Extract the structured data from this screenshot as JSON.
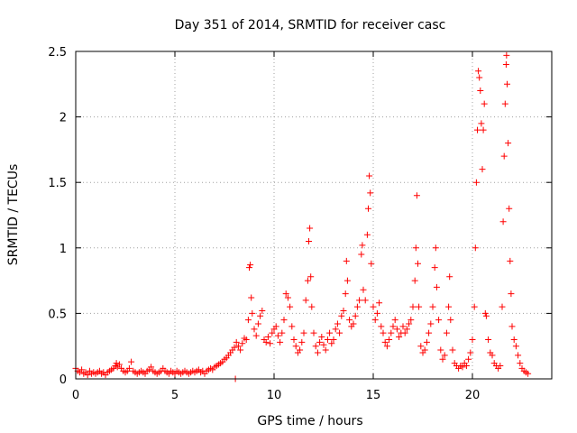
{
  "chart_data": {
    "type": "scatter",
    "title": "Day 351 of 2014, SRMTID for receiver casc",
    "xlabel": "GPS time / hours",
    "ylabel": "SRMTID / TECUs",
    "xlim": [
      0,
      24
    ],
    "ylim": [
      0,
      2.5
    ],
    "x_ticks": [
      0,
      5,
      10,
      15,
      20
    ],
    "x_tick_labels": [
      "0",
      "5",
      "10",
      "15",
      "20"
    ],
    "y_ticks": [
      0,
      0.5,
      1,
      1.5,
      2,
      2.5
    ],
    "y_tick_labels": [
      "0",
      "0.5",
      "1",
      "1.5",
      "2",
      "2.5"
    ],
    "grid": true,
    "marker": "+",
    "marker_color": "#ff0000",
    "series": [
      {
        "name": "SRMTID",
        "points": [
          [
            0.0,
            0.08
          ],
          [
            0.1,
            0.06
          ],
          [
            0.2,
            0.05
          ],
          [
            0.3,
            0.07
          ],
          [
            0.4,
            0.04
          ],
          [
            0.5,
            0.05
          ],
          [
            0.6,
            0.03
          ],
          [
            0.7,
            0.06
          ],
          [
            0.8,
            0.04
          ],
          [
            0.9,
            0.05
          ],
          [
            1.0,
            0.04
          ],
          [
            1.1,
            0.05
          ],
          [
            1.2,
            0.06
          ],
          [
            1.3,
            0.04
          ],
          [
            1.4,
            0.05
          ],
          [
            1.5,
            0.03
          ],
          [
            1.6,
            0.05
          ],
          [
            1.7,
            0.06
          ],
          [
            1.8,
            0.07
          ],
          [
            1.9,
            0.08
          ],
          [
            2.0,
            0.1
          ],
          [
            2.05,
            0.12
          ],
          [
            2.1,
            0.09
          ],
          [
            2.2,
            0.11
          ],
          [
            2.3,
            0.08
          ],
          [
            2.4,
            0.06
          ],
          [
            2.5,
            0.05
          ],
          [
            2.6,
            0.06
          ],
          [
            2.7,
            0.08
          ],
          [
            2.8,
            0.13
          ],
          [
            2.9,
            0.06
          ],
          [
            3.0,
            0.05
          ],
          [
            3.1,
            0.04
          ],
          [
            3.2,
            0.05
          ],
          [
            3.3,
            0.06
          ],
          [
            3.4,
            0.05
          ],
          [
            3.5,
            0.04
          ],
          [
            3.6,
            0.06
          ],
          [
            3.7,
            0.07
          ],
          [
            3.8,
            0.09
          ],
          [
            3.9,
            0.06
          ],
          [
            4.0,
            0.05
          ],
          [
            4.1,
            0.04
          ],
          [
            4.2,
            0.05
          ],
          [
            4.3,
            0.06
          ],
          [
            4.4,
            0.08
          ],
          [
            4.5,
            0.06
          ],
          [
            4.6,
            0.05
          ],
          [
            4.7,
            0.04
          ],
          [
            4.8,
            0.06
          ],
          [
            4.9,
            0.05
          ],
          [
            5.0,
            0.04
          ],
          [
            5.1,
            0.06
          ],
          [
            5.2,
            0.05
          ],
          [
            5.3,
            0.04
          ],
          [
            5.4,
            0.05
          ],
          [
            5.5,
            0.06
          ],
          [
            5.6,
            0.05
          ],
          [
            5.7,
            0.04
          ],
          [
            5.8,
            0.05
          ],
          [
            5.9,
            0.06
          ],
          [
            6.0,
            0.05
          ],
          [
            6.1,
            0.06
          ],
          [
            6.2,
            0.07
          ],
          [
            6.3,
            0.05
          ],
          [
            6.4,
            0.06
          ],
          [
            6.5,
            0.04
          ],
          [
            6.6,
            0.06
          ],
          [
            6.7,
            0.07
          ],
          [
            6.8,
            0.08
          ],
          [
            6.9,
            0.07
          ],
          [
            7.0,
            0.09
          ],
          [
            7.1,
            0.1
          ],
          [
            7.2,
            0.11
          ],
          [
            7.3,
            0.12
          ],
          [
            7.4,
            0.13
          ],
          [
            7.5,
            0.15
          ],
          [
            7.6,
            0.16
          ],
          [
            7.7,
            0.18
          ],
          [
            7.8,
            0.2
          ],
          [
            7.9,
            0.22
          ],
          [
            8.0,
            0.24
          ],
          [
            8.05,
            0.0
          ],
          [
            8.1,
            0.28
          ],
          [
            8.2,
            0.25
          ],
          [
            8.3,
            0.22
          ],
          [
            8.4,
            0.27
          ],
          [
            8.5,
            0.31
          ],
          [
            8.6,
            0.3
          ],
          [
            8.7,
            0.45
          ],
          [
            8.75,
            0.85
          ],
          [
            8.8,
            0.87
          ],
          [
            8.85,
            0.62
          ],
          [
            8.9,
            0.5
          ],
          [
            9.0,
            0.38
          ],
          [
            9.1,
            0.33
          ],
          [
            9.2,
            0.42
          ],
          [
            9.3,
            0.48
          ],
          [
            9.4,
            0.52
          ],
          [
            9.5,
            0.3
          ],
          [
            9.6,
            0.28
          ],
          [
            9.7,
            0.32
          ],
          [
            9.8,
            0.27
          ],
          [
            9.9,
            0.35
          ],
          [
            10.0,
            0.38
          ],
          [
            10.1,
            0.4
          ],
          [
            10.2,
            0.33
          ],
          [
            10.3,
            0.28
          ],
          [
            10.4,
            0.35
          ],
          [
            10.5,
            0.45
          ],
          [
            10.6,
            0.65
          ],
          [
            10.7,
            0.62
          ],
          [
            10.8,
            0.55
          ],
          [
            10.9,
            0.4
          ],
          [
            11.0,
            0.3
          ],
          [
            11.1,
            0.25
          ],
          [
            11.2,
            0.2
          ],
          [
            11.3,
            0.22
          ],
          [
            11.4,
            0.28
          ],
          [
            11.5,
            0.35
          ],
          [
            11.6,
            0.6
          ],
          [
            11.7,
            0.75
          ],
          [
            11.75,
            1.05
          ],
          [
            11.8,
            1.15
          ],
          [
            11.85,
            0.78
          ],
          [
            11.9,
            0.55
          ],
          [
            12.0,
            0.35
          ],
          [
            12.1,
            0.25
          ],
          [
            12.2,
            0.2
          ],
          [
            12.3,
            0.28
          ],
          [
            12.4,
            0.32
          ],
          [
            12.5,
            0.26
          ],
          [
            12.6,
            0.22
          ],
          [
            12.7,
            0.3
          ],
          [
            12.8,
            0.35
          ],
          [
            12.9,
            0.27
          ],
          [
            13.0,
            0.3
          ],
          [
            13.1,
            0.38
          ],
          [
            13.2,
            0.42
          ],
          [
            13.3,
            0.35
          ],
          [
            13.4,
            0.48
          ],
          [
            13.5,
            0.52
          ],
          [
            13.6,
            0.65
          ],
          [
            13.65,
            0.9
          ],
          [
            13.7,
            0.75
          ],
          [
            13.8,
            0.45
          ],
          [
            13.9,
            0.4
          ],
          [
            14.0,
            0.42
          ],
          [
            14.1,
            0.48
          ],
          [
            14.2,
            0.55
          ],
          [
            14.3,
            0.6
          ],
          [
            14.4,
            0.95
          ],
          [
            14.45,
            1.02
          ],
          [
            14.5,
            0.68
          ],
          [
            14.6,
            0.6
          ],
          [
            14.7,
            1.1
          ],
          [
            14.75,
            1.3
          ],
          [
            14.8,
            1.55
          ],
          [
            14.85,
            1.42
          ],
          [
            14.9,
            0.88
          ],
          [
            15.0,
            0.55
          ],
          [
            15.1,
            0.45
          ],
          [
            15.2,
            0.5
          ],
          [
            15.3,
            0.58
          ],
          [
            15.4,
            0.4
          ],
          [
            15.5,
            0.35
          ],
          [
            15.6,
            0.28
          ],
          [
            15.7,
            0.25
          ],
          [
            15.8,
            0.3
          ],
          [
            15.9,
            0.35
          ],
          [
            16.0,
            0.4
          ],
          [
            16.1,
            0.45
          ],
          [
            16.2,
            0.38
          ],
          [
            16.3,
            0.32
          ],
          [
            16.4,
            0.35
          ],
          [
            16.5,
            0.4
          ],
          [
            16.6,
            0.35
          ],
          [
            16.7,
            0.38
          ],
          [
            16.8,
            0.42
          ],
          [
            16.9,
            0.45
          ],
          [
            17.0,
            0.55
          ],
          [
            17.1,
            0.75
          ],
          [
            17.15,
            1.0
          ],
          [
            17.2,
            1.4
          ],
          [
            17.25,
            0.88
          ],
          [
            17.3,
            0.55
          ],
          [
            17.4,
            0.25
          ],
          [
            17.5,
            0.2
          ],
          [
            17.6,
            0.22
          ],
          [
            17.7,
            0.28
          ],
          [
            17.8,
            0.35
          ],
          [
            17.9,
            0.42
          ],
          [
            18.0,
            0.55
          ],
          [
            18.1,
            0.85
          ],
          [
            18.15,
            1.0
          ],
          [
            18.2,
            0.7
          ],
          [
            18.3,
            0.45
          ],
          [
            18.4,
            0.22
          ],
          [
            18.5,
            0.15
          ],
          [
            18.6,
            0.18
          ],
          [
            18.7,
            0.35
          ],
          [
            18.8,
            0.55
          ],
          [
            18.85,
            0.78
          ],
          [
            18.9,
            0.45
          ],
          [
            19.0,
            0.22
          ],
          [
            19.1,
            0.12
          ],
          [
            19.2,
            0.1
          ],
          [
            19.3,
            0.08
          ],
          [
            19.4,
            0.1
          ],
          [
            19.5,
            0.09
          ],
          [
            19.6,
            0.12
          ],
          [
            19.7,
            0.1
          ],
          [
            19.8,
            0.15
          ],
          [
            19.9,
            0.2
          ],
          [
            20.0,
            0.3
          ],
          [
            20.1,
            0.55
          ],
          [
            20.15,
            1.0
          ],
          [
            20.2,
            1.5
          ],
          [
            20.25,
            1.9
          ],
          [
            20.3,
            2.35
          ],
          [
            20.35,
            2.3
          ],
          [
            20.4,
            2.2
          ],
          [
            20.45,
            1.95
          ],
          [
            20.5,
            1.6
          ],
          [
            20.55,
            1.9
          ],
          [
            20.6,
            2.1
          ],
          [
            20.65,
            0.5
          ],
          [
            20.7,
            0.48
          ],
          [
            20.8,
            0.3
          ],
          [
            20.9,
            0.2
          ],
          [
            21.0,
            0.18
          ],
          [
            21.1,
            0.12
          ],
          [
            21.2,
            0.1
          ],
          [
            21.3,
            0.08
          ],
          [
            21.4,
            0.1
          ],
          [
            21.5,
            0.55
          ],
          [
            21.55,
            1.2
          ],
          [
            21.6,
            1.7
          ],
          [
            21.65,
            2.1
          ],
          [
            21.7,
            2.4
          ],
          [
            21.72,
            2.47
          ],
          [
            21.75,
            2.25
          ],
          [
            21.8,
            1.8
          ],
          [
            21.85,
            1.3
          ],
          [
            21.9,
            0.9
          ],
          [
            21.95,
            0.65
          ],
          [
            22.0,
            0.4
          ],
          [
            22.1,
            0.3
          ],
          [
            22.2,
            0.25
          ],
          [
            22.3,
            0.18
          ],
          [
            22.4,
            0.12
          ],
          [
            22.5,
            0.08
          ],
          [
            22.6,
            0.06
          ],
          [
            22.7,
            0.05
          ],
          [
            22.8,
            0.04
          ]
        ]
      }
    ]
  }
}
